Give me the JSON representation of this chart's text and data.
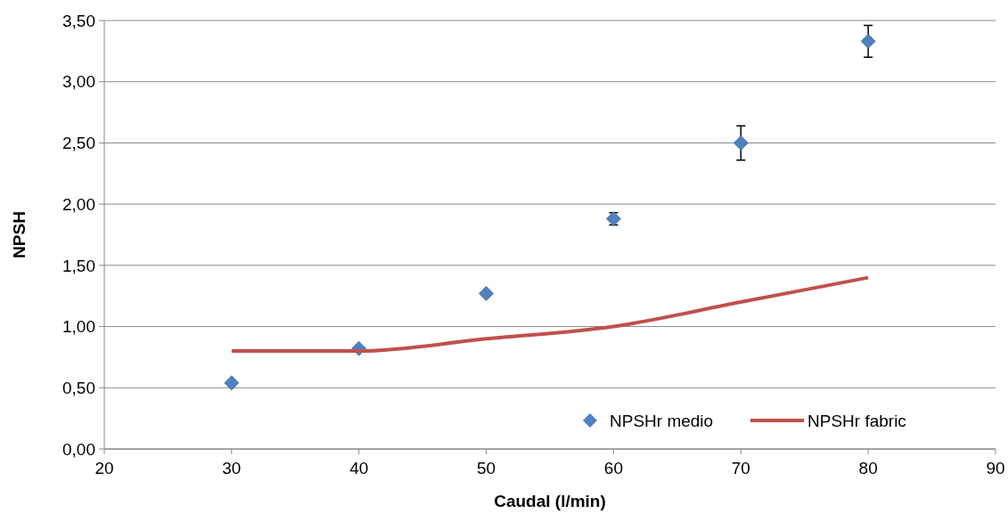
{
  "chart_data": {
    "type": "scatter",
    "xlabel": "Caudal (l/min)",
    "ylabel": "NPSH",
    "xlim": [
      20,
      90
    ],
    "xticks": [
      20,
      30,
      40,
      50,
      60,
      70,
      80,
      90
    ],
    "ylim": [
      0,
      3.5
    ],
    "yticks": [
      {
        "value": 0,
        "label": "0,00"
      },
      {
        "value": 0.5,
        "label": "0,50"
      },
      {
        "value": 1,
        "label": "1,00"
      },
      {
        "value": 1.5,
        "label": "1,50"
      },
      {
        "value": 2,
        "label": "2,00"
      },
      {
        "value": 2.5,
        "label": "2,50"
      },
      {
        "value": 3,
        "label": "3,00"
      },
      {
        "value": 3.5,
        "label": "3,50"
      }
    ],
    "grid": "y",
    "legend": "bottom right",
    "series": [
      {
        "name": "NPSHr medio",
        "marker": "diamond",
        "color": "#4f81bd",
        "x": [
          30,
          40,
          50,
          60,
          70,
          80
        ],
        "values": [
          0.54,
          0.82,
          1.27,
          1.88,
          2.5,
          3.33
        ],
        "errors": [
          null,
          null,
          null,
          0.05,
          0.14,
          0.13
        ]
      },
      {
        "name": "NPSHr fabric",
        "type": "line",
        "marker": "none",
        "line_style": "solid",
        "color": "#c0504d",
        "x": [
          30,
          40,
          50,
          60,
          70,
          80
        ],
        "values": [
          0.8,
          0.8,
          0.9,
          1.0,
          1.2,
          1.4
        ]
      }
    ]
  }
}
